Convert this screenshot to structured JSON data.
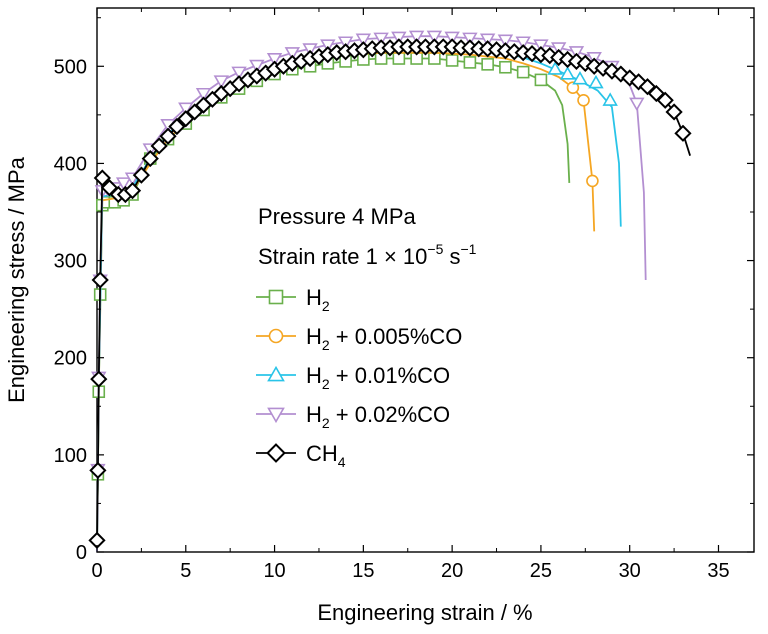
{
  "chart_data": {
    "type": "line",
    "xlabel": "Engineering strain / %",
    "ylabel": "Engineering stress / MPa",
    "xlim": [
      0,
      37
    ],
    "ylim": [
      0,
      560
    ],
    "x_ticks": [
      0,
      5,
      10,
      15,
      20,
      25,
      30,
      35
    ],
    "y_ticks": [
      0,
      100,
      200,
      300,
      400,
      500
    ],
    "grid": false,
    "legend_position": "center",
    "annotations": [
      "Pressure 4 MPa",
      "Strain rate 1 × 10−5 s−1"
    ],
    "annotation_parts": {
      "pressure": "Pressure 4 MPa",
      "rate_prefix": "Strain rate 1 × 10",
      "rate_exp": "−5",
      "rate_unit": " s",
      "rate_unit_exp": "−1"
    },
    "series": [
      {
        "name": "H2",
        "legend_main": "H",
        "legend_sub": "2",
        "legend_rest": "",
        "color": "#6ab04c",
        "marker": "square",
        "x": [
          0,
          0.05,
          0.1,
          0.18,
          0.3,
          0.6,
          1.0,
          1.5,
          2,
          3,
          4,
          5,
          6,
          7,
          8,
          9,
          10,
          11,
          12,
          13,
          14,
          15,
          16,
          17,
          18,
          19,
          20,
          21,
          22,
          23,
          24,
          25,
          25.8,
          26.2,
          26.5,
          26.6
        ],
        "y": [
          0,
          80,
          165,
          265,
          357,
          360,
          360,
          362,
          368,
          405,
          425,
          441,
          455,
          468,
          477,
          485,
          492,
          497,
          500,
          503,
          505,
          507,
          508,
          508,
          508,
          508,
          506,
          504,
          502,
          499,
          494,
          486,
          475,
          460,
          420,
          380
        ],
        "marker_x": [
          0.05,
          0.1,
          0.18,
          0.3,
          0.6,
          1.0,
          1.5,
          2,
          3,
          4,
          5,
          6,
          7,
          8,
          9,
          10,
          11,
          12,
          13,
          14,
          15,
          16,
          17,
          18,
          19,
          20,
          21,
          22,
          23,
          24,
          25
        ],
        "marker_y": [
          80,
          165,
          265,
          357,
          360,
          360,
          362,
          368,
          405,
          425,
          441,
          455,
          468,
          477,
          485,
          492,
          497,
          500,
          503,
          505,
          507,
          508,
          508,
          508,
          508,
          506,
          504,
          502,
          499,
          494,
          486
        ]
      },
      {
        "name": "H2 + 0.005%CO",
        "legend_main": "H",
        "legend_sub": "2",
        "legend_rest": " + 0.005%CO",
        "color": "#f5a623",
        "marker": "circle",
        "x": [
          0,
          0.1,
          0.3,
          1,
          2,
          3,
          4,
          5,
          6,
          7,
          8,
          9,
          10,
          11,
          12,
          13,
          14,
          15,
          16,
          17,
          18,
          19,
          20,
          21,
          22,
          23,
          24,
          25,
          26,
          26.8,
          27.4,
          27.9,
          28.0
        ],
        "y": [
          0,
          170,
          362,
          364,
          372,
          400,
          425,
          443,
          459,
          472,
          481,
          488,
          495,
          500,
          505,
          509,
          512,
          513,
          514,
          514,
          514,
          514,
          513,
          512,
          510,
          508,
          503,
          497,
          489,
          478,
          465,
          382,
          330
        ],
        "marker_x": [
          26.8,
          27.4,
          27.9
        ],
        "marker_y": [
          478,
          465,
          382
        ]
      },
      {
        "name": "H2 + 0.01%CO",
        "legend_main": "H",
        "legend_sub": "2",
        "legend_rest": " + 0.01%CO",
        "color": "#29c4e8",
        "marker": "triangle-up",
        "x": [
          0,
          0.1,
          0.3,
          1,
          2,
          3,
          4,
          5,
          6,
          7,
          8,
          9,
          10,
          11,
          12,
          13,
          14,
          15,
          16,
          17,
          18,
          19,
          20,
          21,
          22,
          23,
          24,
          25,
          26,
          27,
          28.2,
          29.0,
          29.4,
          29.5
        ],
        "y": [
          0,
          172,
          366,
          368,
          376,
          405,
          430,
          448,
          463,
          476,
          486,
          493,
          500,
          506,
          511,
          515,
          518,
          519,
          520,
          520,
          520,
          520,
          519,
          518,
          516,
          513,
          509,
          503,
          495,
          487,
          475,
          458,
          400,
          335
        ],
        "marker_x": [
          25.8,
          26.5,
          27.2,
          28.1,
          28.9
        ],
        "marker_y": [
          497,
          492,
          487,
          483,
          465
        ]
      },
      {
        "name": "H2 + 0.02%CO",
        "legend_main": "H",
        "legend_sub": "2",
        "legend_rest": " + 0.02%CO",
        "color": "#b38fd1",
        "marker": "triangle-down",
        "x": [
          0,
          0.05,
          0.1,
          0.18,
          0.3,
          0.6,
          1.0,
          1.5,
          2,
          3,
          4,
          5,
          6,
          7,
          8,
          9,
          10,
          11,
          12,
          13,
          14,
          15,
          16,
          17,
          18,
          19,
          20,
          21,
          22,
          23,
          24,
          25,
          26,
          27,
          28,
          29,
          29.8,
          30.4,
          30.8,
          30.9
        ],
        "y": [
          0,
          85,
          180,
          280,
          372,
          374,
          375,
          380,
          385,
          415,
          440,
          457,
          472,
          485,
          494,
          501,
          508,
          514,
          518,
          522,
          525,
          528,
          529,
          530,
          531,
          531,
          530,
          529,
          528,
          527,
          525,
          522,
          519,
          515,
          509,
          500,
          490,
          462,
          370,
          280
        ],
        "marker_x": [
          0.05,
          0.1,
          0.18,
          0.3,
          0.6,
          1.0,
          1.5,
          2,
          3,
          4,
          5,
          6,
          7,
          8,
          9,
          10,
          11,
          12,
          13,
          14,
          15,
          16,
          17,
          18,
          19,
          20,
          21,
          22,
          23,
          24,
          25,
          26,
          27,
          28,
          29,
          30.4
        ],
        "marker_y": [
          85,
          180,
          280,
          372,
          374,
          375,
          380,
          385,
          415,
          440,
          457,
          472,
          485,
          494,
          501,
          508,
          514,
          518,
          522,
          525,
          528,
          529,
          530,
          531,
          531,
          530,
          529,
          528,
          527,
          525,
          522,
          519,
          515,
          509,
          500,
          462
        ]
      },
      {
        "name": "CH4",
        "legend_main": "CH",
        "legend_sub": "4",
        "legend_rest": "",
        "color": "#000000",
        "marker": "diamond",
        "x": [
          0,
          0.05,
          0.1,
          0.18,
          0.3,
          0.7,
          1.2,
          1.6,
          2,
          2.5,
          3,
          3.5,
          4,
          4.5,
          5,
          5.5,
          6,
          6.5,
          7,
          7.5,
          8,
          8.5,
          9,
          9.5,
          10,
          10.5,
          11,
          11.5,
          12,
          12.5,
          13,
          13.5,
          14,
          14.5,
          15,
          15.5,
          16,
          16.5,
          17,
          17.5,
          18,
          18.5,
          19,
          19.5,
          20,
          20.5,
          21,
          21.5,
          22,
          22.5,
          23,
          23.5,
          24,
          24.5,
          25,
          25.5,
          26,
          26.5,
          27,
          27.5,
          28,
          28.5,
          29,
          29.5,
          30,
          30.5,
          31,
          31.5,
          32,
          32.5,
          33,
          33.4
        ],
        "y": [
          12,
          84,
          178,
          280,
          385,
          375,
          368,
          368,
          372,
          388,
          405,
          418,
          428,
          438,
          446,
          453,
          460,
          466,
          472,
          477,
          482,
          486,
          490,
          493,
          497,
          500,
          503,
          505,
          508,
          510,
          512,
          514,
          515,
          516,
          517,
          518,
          519,
          519,
          520,
          520,
          520,
          520,
          520,
          520,
          520,
          519,
          519,
          518,
          518,
          517,
          516,
          515,
          514,
          513,
          512,
          511,
          509,
          507,
          505,
          503,
          500,
          498,
          495,
          492,
          488,
          484,
          479,
          472,
          465,
          453,
          431,
          408
        ],
        "marker_x": [
          0,
          0.05,
          0.1,
          0.18,
          0.3,
          0.7,
          1.2,
          1.6,
          2,
          2.5,
          3,
          3.5,
          4,
          4.5,
          5,
          5.5,
          6,
          6.5,
          7,
          7.5,
          8,
          8.5,
          9,
          9.5,
          10,
          10.5,
          11,
          11.5,
          12,
          12.5,
          13,
          13.5,
          14,
          14.5,
          15,
          15.5,
          16,
          16.5,
          17,
          17.5,
          18,
          18.5,
          19,
          19.5,
          20,
          20.5,
          21,
          21.5,
          22,
          22.5,
          23,
          23.5,
          24,
          24.5,
          25,
          25.5,
          26,
          26.5,
          27,
          27.5,
          28,
          28.5,
          29,
          29.5,
          30,
          30.5,
          31,
          31.5,
          32,
          32.5,
          33
        ],
        "marker_y": [
          12,
          84,
          178,
          280,
          385,
          375,
          368,
          368,
          372,
          388,
          405,
          418,
          428,
          438,
          446,
          453,
          460,
          466,
          472,
          477,
          482,
          486,
          490,
          493,
          497,
          500,
          503,
          505,
          508,
          510,
          512,
          514,
          515,
          516,
          517,
          518,
          519,
          519,
          520,
          520,
          520,
          520,
          520,
          520,
          520,
          519,
          519,
          518,
          518,
          517,
          516,
          515,
          514,
          513,
          512,
          511,
          509,
          507,
          505,
          503,
          500,
          498,
          495,
          492,
          488,
          484,
          479,
          472,
          465,
          453,
          431
        ]
      }
    ]
  }
}
